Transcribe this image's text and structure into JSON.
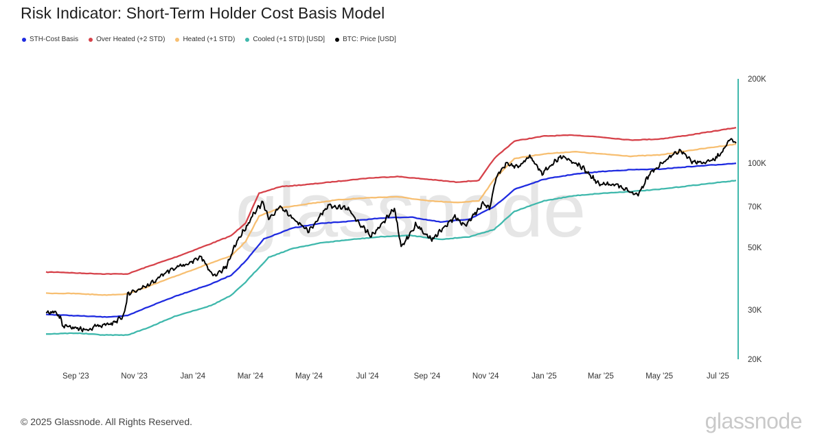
{
  "header": {
    "title": "Risk Indicator: Short-Term Holder Cost Basis Model"
  },
  "legend": [
    {
      "label": "STH-Cost Basis",
      "color": "#1f2be0"
    },
    {
      "label": "Over Heated (+2 STD)",
      "color": "#d6424a"
    },
    {
      "label": "Heated (+1 STD)",
      "color": "#f7bf72"
    },
    {
      "label": "Cooled (+1 STD) [USD]",
      "color": "#3fb8ac"
    },
    {
      "label": "BTC: Price [USD]",
      "color": "#000000"
    }
  ],
  "footer": {
    "copyright": "© 2025 Glassnode. All Rights Reserved.",
    "brand": "glassnode"
  },
  "watermark": "glassnode",
  "chart_data": {
    "type": "line",
    "title": "Risk Indicator: Short-Term Holder Cost Basis Model",
    "yscale": "log",
    "ylim": [
      20000,
      200000
    ],
    "xlim": [
      "2023-08-01",
      "2025-07-20"
    ],
    "x_ticks": [
      {
        "date": "2023-09-01",
        "label": "Sep '23"
      },
      {
        "date": "2023-11-01",
        "label": "Nov '23"
      },
      {
        "date": "2024-01-01",
        "label": "Jan '24"
      },
      {
        "date": "2024-03-01",
        "label": "Mar '24"
      },
      {
        "date": "2024-05-01",
        "label": "May '24"
      },
      {
        "date": "2024-07-01",
        "label": "Jul '24"
      },
      {
        "date": "2024-09-01",
        "label": "Sep '24"
      },
      {
        "date": "2024-11-01",
        "label": "Nov '24"
      },
      {
        "date": "2025-01-01",
        "label": "Jan '25"
      },
      {
        "date": "2025-03-01",
        "label": "Mar '25"
      },
      {
        "date": "2025-05-01",
        "label": "May '25"
      },
      {
        "date": "2025-07-01",
        "label": "Jul '25"
      }
    ],
    "y_ticks": [
      {
        "value": 200000,
        "label": "200K"
      },
      {
        "value": 100000,
        "label": "100K"
      },
      {
        "value": 70000,
        "label": "70K"
      },
      {
        "value": 50000,
        "label": "50K"
      },
      {
        "value": 30000,
        "label": "30K"
      },
      {
        "value": 20000,
        "label": "20K"
      }
    ],
    "legend_position": "top-left",
    "grid": false,
    "series": [
      {
        "name": "Over Heated (+2 STD)",
        "color": "#d6424a",
        "points": [
          [
            "2023-08-01",
            40900
          ],
          [
            "2023-08-15",
            40900
          ],
          [
            "2023-09-01",
            40600
          ],
          [
            "2023-10-01",
            40300
          ],
          [
            "2023-10-25",
            40300
          ],
          [
            "2023-11-15",
            42800
          ],
          [
            "2023-12-15",
            46400
          ],
          [
            "2024-01-20",
            51700
          ],
          [
            "2024-02-10",
            55200
          ],
          [
            "2024-02-25",
            61300
          ],
          [
            "2024-03-10",
            78100
          ],
          [
            "2024-04-01",
            82500
          ],
          [
            "2024-05-01",
            84100
          ],
          [
            "2024-06-01",
            86300
          ],
          [
            "2024-07-01",
            88500
          ],
          [
            "2024-08-01",
            89700
          ],
          [
            "2024-09-01",
            87700
          ],
          [
            "2024-10-01",
            85700
          ],
          [
            "2024-10-25",
            86800
          ],
          [
            "2024-11-10",
            104000
          ],
          [
            "2024-12-01",
            120000
          ],
          [
            "2025-01-01",
            125000
          ],
          [
            "2025-02-01",
            126000
          ],
          [
            "2025-03-01",
            124000
          ],
          [
            "2025-04-01",
            121000
          ],
          [
            "2025-05-01",
            122000
          ],
          [
            "2025-06-01",
            126000
          ],
          [
            "2025-07-20",
            134000
          ]
        ]
      },
      {
        "name": "Heated (+1 STD)",
        "color": "#f7bf72",
        "points": [
          [
            "2023-08-01",
            34400
          ],
          [
            "2023-09-01",
            34300
          ],
          [
            "2023-10-01",
            33900
          ],
          [
            "2023-10-25",
            34200
          ],
          [
            "2023-11-15",
            36300
          ],
          [
            "2023-12-15",
            39700
          ],
          [
            "2024-01-20",
            44100
          ],
          [
            "2024-02-10",
            46700
          ],
          [
            "2024-02-25",
            52600
          ],
          [
            "2024-03-10",
            64800
          ],
          [
            "2024-04-01",
            69300
          ],
          [
            "2024-05-01",
            71800
          ],
          [
            "2024-06-01",
            74100
          ],
          [
            "2024-07-01",
            75300
          ],
          [
            "2024-08-01",
            76000
          ],
          [
            "2024-09-01",
            73500
          ],
          [
            "2024-10-01",
            72400
          ],
          [
            "2024-10-25",
            73500
          ],
          [
            "2024-11-10",
            87700
          ],
          [
            "2024-12-01",
            104000
          ],
          [
            "2025-01-01",
            108000
          ],
          [
            "2025-02-01",
            110000
          ],
          [
            "2025-03-01",
            108000
          ],
          [
            "2025-04-01",
            106000
          ],
          [
            "2025-05-01",
            107000
          ],
          [
            "2025-06-01",
            111000
          ],
          [
            "2025-07-20",
            117000
          ]
        ]
      },
      {
        "name": "STH-Cost Basis",
        "color": "#1f2be0",
        "points": [
          [
            "2023-08-01",
            28900
          ],
          [
            "2023-09-01",
            28600
          ],
          [
            "2023-10-01",
            28300
          ],
          [
            "2023-10-25",
            28600
          ],
          [
            "2023-11-15",
            30700
          ],
          [
            "2023-12-15",
            33700
          ],
          [
            "2024-01-20",
            37100
          ],
          [
            "2024-02-10",
            39900
          ],
          [
            "2024-02-25",
            44800
          ],
          [
            "2024-03-15",
            53700
          ],
          [
            "2024-04-15",
            58900
          ],
          [
            "2024-05-15",
            61100
          ],
          [
            "2024-06-15",
            62200
          ],
          [
            "2024-07-15",
            63800
          ],
          [
            "2024-08-15",
            64300
          ],
          [
            "2024-09-15",
            61700
          ],
          [
            "2024-10-15",
            63200
          ],
          [
            "2024-11-10",
            70000
          ],
          [
            "2024-12-01",
            80700
          ],
          [
            "2025-01-01",
            87700
          ],
          [
            "2025-02-01",
            91400
          ],
          [
            "2025-03-01",
            93400
          ],
          [
            "2025-04-01",
            94800
          ],
          [
            "2025-05-01",
            95300
          ],
          [
            "2025-06-01",
            97200
          ],
          [
            "2025-07-20",
            100000
          ]
        ]
      },
      {
        "name": "Cooled (+1 STD) [USD]",
        "color": "#3fb8ac",
        "points": [
          [
            "2023-08-01",
            24600
          ],
          [
            "2023-09-01",
            24800
          ],
          [
            "2023-10-01",
            24400
          ],
          [
            "2023-10-25",
            24400
          ],
          [
            "2023-11-15",
            25900
          ],
          [
            "2023-12-15",
            28600
          ],
          [
            "2024-01-20",
            31100
          ],
          [
            "2024-02-10",
            33800
          ],
          [
            "2024-02-25",
            37700
          ],
          [
            "2024-03-20",
            46200
          ],
          [
            "2024-04-15",
            49800
          ],
          [
            "2024-05-15",
            52100
          ],
          [
            "2024-06-15",
            53500
          ],
          [
            "2024-07-15",
            54700
          ],
          [
            "2024-08-15",
            55300
          ],
          [
            "2024-09-15",
            53500
          ],
          [
            "2024-10-15",
            54700
          ],
          [
            "2024-11-10",
            58100
          ],
          [
            "2024-12-01",
            67300
          ],
          [
            "2025-01-01",
            73500
          ],
          [
            "2025-02-01",
            76600
          ],
          [
            "2025-03-01",
            78100
          ],
          [
            "2025-04-01",
            79300
          ],
          [
            "2025-05-01",
            80700
          ],
          [
            "2025-06-01",
            83100
          ],
          [
            "2025-07-20",
            86800
          ]
        ]
      },
      {
        "name": "BTC: Price [USD]",
        "color": "#000000",
        "points": [
          [
            "2023-08-01",
            29300
          ],
          [
            "2023-08-10",
            29400
          ],
          [
            "2023-08-16",
            28300
          ],
          [
            "2023-08-18",
            26300
          ],
          [
            "2023-09-01",
            25900
          ],
          [
            "2023-09-12",
            25500
          ],
          [
            "2023-09-25",
            26400
          ],
          [
            "2023-10-10",
            27000
          ],
          [
            "2023-10-20",
            28200
          ],
          [
            "2023-10-23",
            30800
          ],
          [
            "2023-10-25",
            34000
          ],
          [
            "2023-11-15",
            36500
          ],
          [
            "2023-12-05",
            41000
          ],
          [
            "2023-12-20",
            43200
          ],
          [
            "2024-01-10",
            46100
          ],
          [
            "2024-01-23",
            39400
          ],
          [
            "2024-02-05",
            42700
          ],
          [
            "2024-02-15",
            52100
          ],
          [
            "2024-02-28",
            61200
          ],
          [
            "2024-03-05",
            67000
          ],
          [
            "2024-03-14",
            72300
          ],
          [
            "2024-03-20",
            63200
          ],
          [
            "2024-04-01",
            70100
          ],
          [
            "2024-04-13",
            64200
          ],
          [
            "2024-05-01",
            57400
          ],
          [
            "2024-05-21",
            70800
          ],
          [
            "2024-06-10",
            69100
          ],
          [
            "2024-06-25",
            59800
          ],
          [
            "2024-07-05",
            55200
          ],
          [
            "2024-07-10",
            57600
          ],
          [
            "2024-07-29",
            68900
          ],
          [
            "2024-08-05",
            50200
          ],
          [
            "2024-08-20",
            60300
          ],
          [
            "2024-09-06",
            53600
          ],
          [
            "2024-09-30",
            64400
          ],
          [
            "2024-10-10",
            59800
          ],
          [
            "2024-10-29",
            71500
          ],
          [
            "2024-11-05",
            69000
          ],
          [
            "2024-11-12",
            89500
          ],
          [
            "2024-11-22",
            99000
          ],
          [
            "2024-12-05",
            97200
          ],
          [
            "2024-12-17",
            106000
          ],
          [
            "2024-12-30",
            92400
          ],
          [
            "2025-01-20",
            106600
          ],
          [
            "2025-02-10",
            96400
          ],
          [
            "2025-02-28",
            83700
          ],
          [
            "2025-03-15",
            84500
          ],
          [
            "2025-04-08",
            76800
          ],
          [
            "2025-04-22",
            93000
          ],
          [
            "2025-05-22",
            111000
          ],
          [
            "2025-06-05",
            101000
          ],
          [
            "2025-06-22",
            100900
          ],
          [
            "2025-07-05",
            108500
          ],
          [
            "2025-07-14",
            122000
          ],
          [
            "2025-07-20",
            118000
          ]
        ]
      }
    ]
  }
}
